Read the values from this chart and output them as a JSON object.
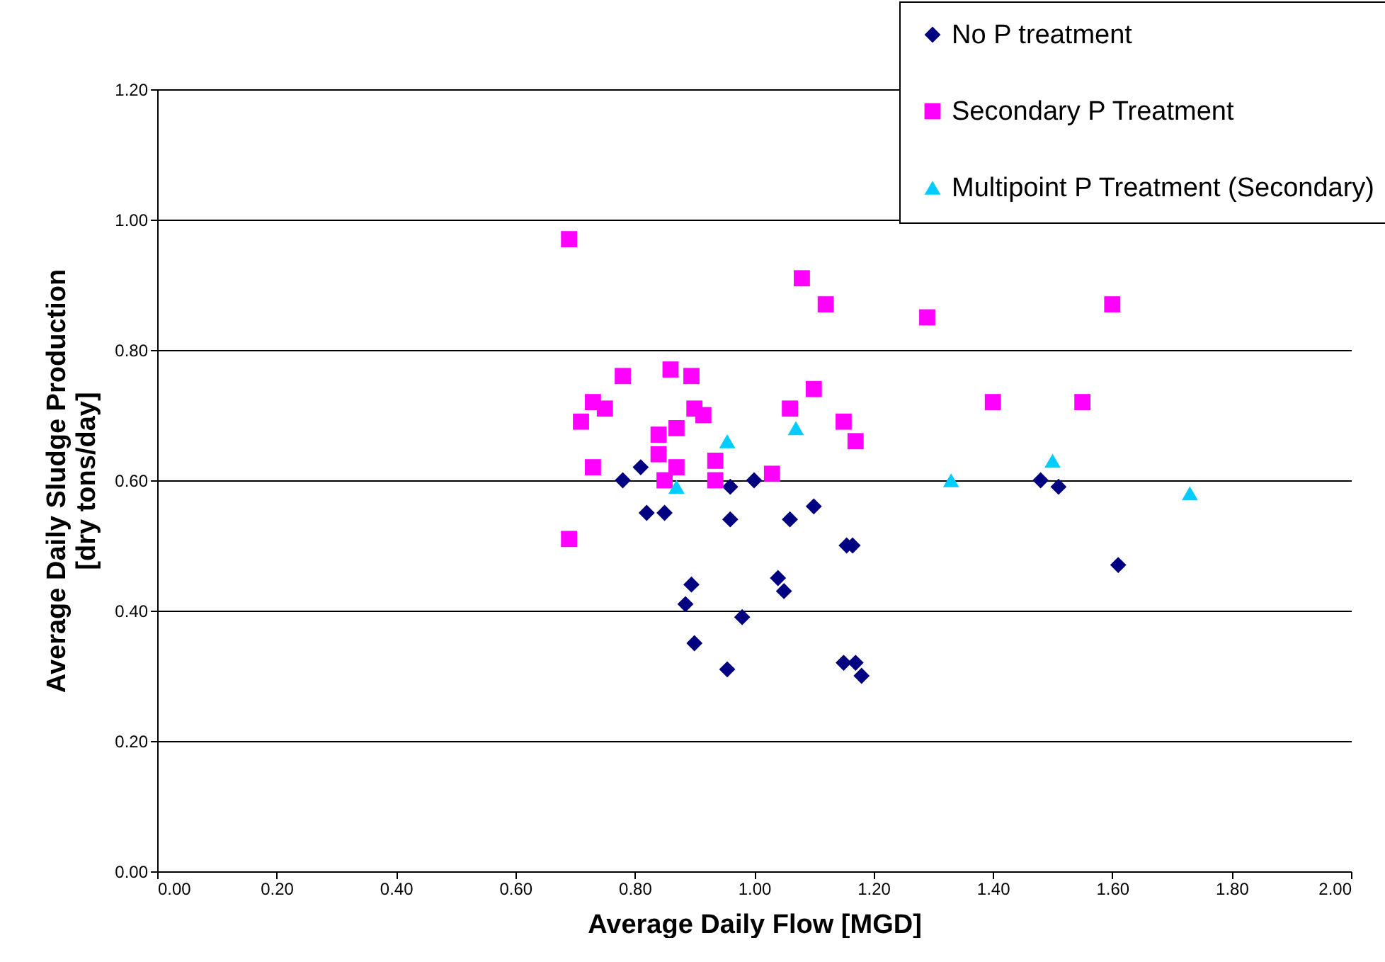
{
  "chart_data": {
    "type": "scatter",
    "xlabel": "Average Daily Flow [MGD]",
    "ylabel": "Average Daily Sludge Production\n[dry tons/day]",
    "xlim": [
      0,
      2
    ],
    "ylim": [
      0,
      1.2
    ],
    "xticks": [
      {
        "value": 0,
        "label": "0.00"
      },
      {
        "value": 0.2,
        "label": "0.20"
      },
      {
        "value": 0.4,
        "label": "0.40"
      },
      {
        "value": 0.6,
        "label": "0.60"
      },
      {
        "value": 0.8,
        "label": "0.80"
      },
      {
        "value": 1,
        "label": "1.00"
      },
      {
        "value": 1.2,
        "label": "1.20"
      },
      {
        "value": 1.4,
        "label": "1.40"
      },
      {
        "value": 1.6,
        "label": "1.60"
      },
      {
        "value": 1.8,
        "label": "1.80"
      },
      {
        "value": 2,
        "label": "2.00"
      }
    ],
    "yticks": [
      {
        "value": 0,
        "label": "0.00"
      },
      {
        "value": 0.2,
        "label": "0.20"
      },
      {
        "value": 0.4,
        "label": "0.40"
      },
      {
        "value": 0.6,
        "label": "0.60"
      },
      {
        "value": 0.8,
        "label": "0.80"
      },
      {
        "value": 1,
        "label": "1.00"
      },
      {
        "value": 1.2,
        "label": "1.20"
      }
    ],
    "grid": "y",
    "legend": "top right",
    "series": [
      {
        "name": "No P treatment",
        "color": "#000080",
        "marker": "diamond",
        "x": [
          0.78,
          0.81,
          0.82,
          0.85,
          0.885,
          0.895,
          0.9,
          0.955,
          0.96,
          0.96,
          0.98,
          1.0,
          1.04,
          1.05,
          1.06,
          1.1,
          1.15,
          1.155,
          1.165,
          1.17,
          1.18,
          1.48,
          1.51,
          1.61
        ],
        "values": [
          0.6,
          0.62,
          0.55,
          0.55,
          0.41,
          0.44,
          0.35,
          0.31,
          0.59,
          0.54,
          0.39,
          0.6,
          0.45,
          0.43,
          0.54,
          0.56,
          0.32,
          0.5,
          0.5,
          0.32,
          0.3,
          0.6,
          0.59,
          0.47
        ]
      },
      {
        "name": "Secondary P Treatment",
        "color": "#ff00ff",
        "marker": "square",
        "x": [
          0.69,
          0.69,
          0.71,
          0.73,
          0.73,
          0.75,
          0.78,
          0.84,
          0.84,
          0.85,
          0.86,
          0.87,
          0.87,
          0.895,
          0.9,
          0.915,
          0.935,
          0.935,
          1.03,
          1.06,
          1.08,
          1.1,
          1.12,
          1.15,
          1.17,
          1.29,
          1.4,
          1.55,
          1.6
        ],
        "values": [
          0.97,
          0.51,
          0.69,
          0.72,
          0.62,
          0.71,
          0.76,
          0.64,
          0.67,
          0.6,
          0.77,
          0.68,
          0.62,
          0.76,
          0.71,
          0.7,
          0.63,
          0.6,
          0.61,
          0.71,
          0.91,
          0.74,
          0.87,
          0.69,
          0.66,
          0.85,
          0.72,
          0.72,
          0.87
        ]
      },
      {
        "name": "Multipoint P Treatment (Secondary)",
        "color": "#00ccff",
        "marker": "triangle",
        "x": [
          0.87,
          0.955,
          1.07,
          1.33,
          1.5,
          1.73
        ],
        "values": [
          0.59,
          0.66,
          0.68,
          0.6,
          0.63,
          0.58
        ]
      }
    ]
  }
}
